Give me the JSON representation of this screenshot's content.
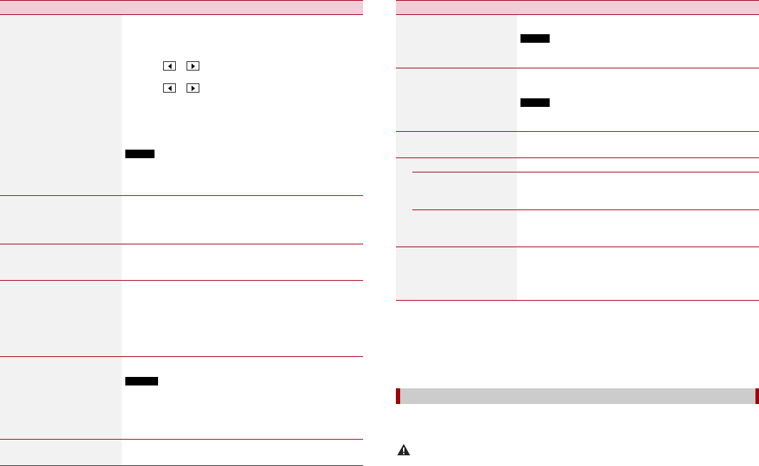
{
  "colors": {
    "accent": "#a50010",
    "header_bg": "#f2cdd8",
    "label_bg": "#f2f2f2",
    "section_bar": "#cccccc"
  },
  "icons": [
    "left-arrow-button-icon",
    "right-arrow-button-icon",
    "note-badge",
    "warning-icon"
  ]
}
